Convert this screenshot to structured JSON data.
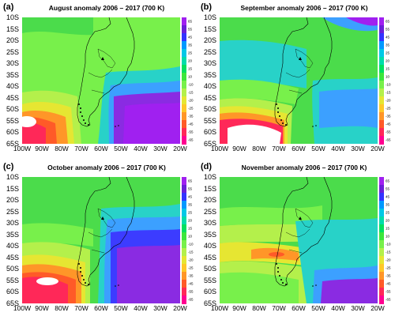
{
  "panels": [
    {
      "label": "(a)",
      "title": "August anomaly 2006 – 2017 (700 K)"
    },
    {
      "label": "(b)",
      "title": "September anomaly 2006 – 2017 (700 K)"
    },
    {
      "label": "(c)",
      "title": "October anomaly 2006 – 2017 (700 K)"
    },
    {
      "label": "(d)",
      "title": "November anomaly 2006 – 2017 (700 K)"
    }
  ],
  "lat_labels": [
    "10S",
    "15S",
    "20S",
    "25S",
    "30S",
    "35S",
    "40S",
    "45S",
    "50S",
    "55S",
    "60S",
    "65S"
  ],
  "lon_labels": [
    "100W",
    "90W",
    "80W",
    "70W",
    "60W",
    "50W",
    "40W",
    "30W",
    "20W"
  ],
  "colorbar": {
    "labels": [
      "65",
      "55",
      "45",
      "35",
      "25",
      "20",
      "15",
      "10",
      "-10",
      "-15",
      "-20",
      "-25",
      "-35",
      "-45",
      "-55",
      "-65"
    ],
    "colors": [
      "#a020f0",
      "#6a1fd8",
      "#3333ff",
      "#0099ff",
      "#00c8e6",
      "#00dcaa",
      "#00e060",
      "#3ce63c",
      "#78f04b",
      "#b4f04b",
      "#e6e632",
      "#ffc828",
      "#ff9628",
      "#ff5a28",
      "#ff2858",
      "#ff0090"
    ]
  },
  "colors": {
    "purple": "#a020f0",
    "violet": "#8a2be2",
    "blue": "#3c3cff",
    "lightblue": "#3ca0ff",
    "cyan": "#28d2c8",
    "green": "#4bdc4b",
    "lightgreen": "#78f04b",
    "yellowgreen": "#b4f04b",
    "yellow": "#e6e632",
    "orange": "#ff9628",
    "red": "#ff3c3c",
    "pink": "#ff2896",
    "white": "#ffffff"
  }
}
